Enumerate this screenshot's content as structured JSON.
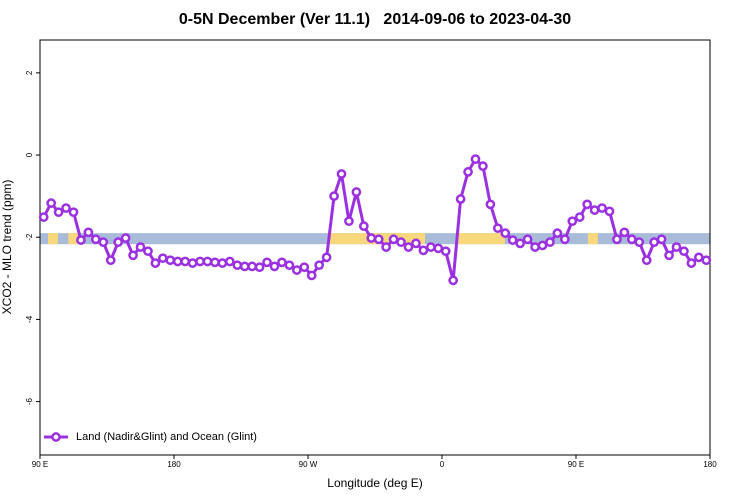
{
  "chart_data": {
    "type": "line",
    "title": "0-5N December (Ver 11.1)   2014-09-06 to 2023-04-30",
    "x_label": "Longitude (deg E)",
    "y_label": "XCO2 - MLO trend (ppm)",
    "xlim": [
      -270,
      180
    ],
    "xticks": [
      {
        "value": -270,
        "label": "90 E"
      },
      {
        "value": -180,
        "label": "180"
      },
      {
        "value": -90,
        "label": "90 W"
      },
      0,
      {
        "value": 90,
        "label": "90 E"
      },
      180
    ],
    "ylim": [
      -7.3,
      2.8
    ],
    "yticks": [
      2,
      0,
      -2,
      -4,
      -6
    ],
    "legend": "bottom-left",
    "band": {
      "range": [
        -2.17,
        -1.9
      ],
      "segments": [
        {
          "xlim": [
            -270,
            180
          ],
          "color": "#a8bcda"
        },
        {
          "xlim": [
            -264.6,
            -257.9
          ],
          "color": "#f9d77c"
        },
        {
          "xlim": [
            -251,
            -244.5
          ],
          "color": "#f9d77c"
        },
        {
          "xlim": [
            -76.6,
            -11.4
          ],
          "color": "#f9d77c"
        },
        {
          "xlim": [
            10.7,
            42.3
          ],
          "color": "#f9d77c"
        },
        {
          "xlim": [
            98,
            104.7
          ],
          "color": "#f9d77c"
        }
      ]
    },
    "x": [
      -267.5,
      -262.5,
      -257.5,
      -252.5,
      -247.5,
      -242.5,
      -237.5,
      -232.5,
      -227.5,
      -222.5,
      -217.5,
      -212.5,
      -207.5,
      -202.5,
      -197.5,
      -192.5,
      -187.5,
      -182.5,
      -177.5,
      -172.5,
      -167.5,
      -162.5,
      -157.5,
      -152.5,
      -147.5,
      -142.5,
      -137.5,
      -132.5,
      -127.5,
      -122.5,
      -117.5,
      -112.5,
      -107.5,
      -102.5,
      -97.5,
      -92.5,
      -87.5,
      -82.5,
      -77.5,
      -72.5,
      -67.5,
      -62.5,
      -57.5,
      -52.5,
      -47.5,
      -42.5,
      -37.5,
      -32.5,
      -27.5,
      -22.5,
      -17.5,
      -12.5,
      -7.5,
      -2.5,
      2.5,
      7.5,
      12.5,
      17.5,
      22.5,
      27.5,
      32.5,
      37.5,
      42.5,
      47.5,
      52.5,
      57.5,
      62.5,
      67.5,
      72.5,
      77.5,
      82.5,
      87.5,
      92.5,
      97.5,
      102.5,
      107.5,
      112.5,
      117.5,
      122.5,
      127.5,
      132.5,
      137.5,
      142.5,
      147.5,
      152.5,
      157.5,
      162.5,
      167.5,
      172.5,
      177.5
    ],
    "series": [
      {
        "name": "Land (Nadir&Glint) and Ocean (Glint)",
        "color": "#9b30e0",
        "values": [
          -1.51,
          -1.17,
          -1.39,
          -1.29,
          -1.39,
          -2.07,
          -1.88,
          -2.05,
          -2.12,
          -2.56,
          -2.12,
          -2.02,
          -2.44,
          -2.24,
          -2.34,
          -2.63,
          -2.51,
          -2.56,
          -2.59,
          -2.59,
          -2.63,
          -2.59,
          -2.59,
          -2.61,
          -2.63,
          -2.59,
          -2.68,
          -2.71,
          -2.71,
          -2.73,
          -2.61,
          -2.71,
          -2.61,
          -2.68,
          -2.8,
          -2.73,
          -2.93,
          -2.68,
          -2.49,
          -1.0,
          -0.46,
          -1.61,
          -0.9,
          -1.73,
          -2.02,
          -2.05,
          -2.24,
          -2.05,
          -2.12,
          -2.24,
          -2.15,
          -2.32,
          -2.24,
          -2.27,
          -2.34,
          -3.05,
          -1.07,
          -0.41,
          -0.1,
          -0.27,
          -1.2,
          -1.78,
          -1.9,
          -2.07,
          -2.15,
          -2.05,
          -2.24,
          -2.2,
          -2.12,
          -1.9,
          -2.05,
          -1.61,
          -1.51,
          -1.2,
          -1.34,
          -1.29,
          -1.37,
          -2.05,
          -1.88,
          -2.05,
          -2.12,
          -2.56,
          -2.12,
          -2.05,
          -2.44,
          -2.24,
          -2.34,
          -2.63,
          -2.49,
          -2.56
        ]
      }
    ]
  }
}
